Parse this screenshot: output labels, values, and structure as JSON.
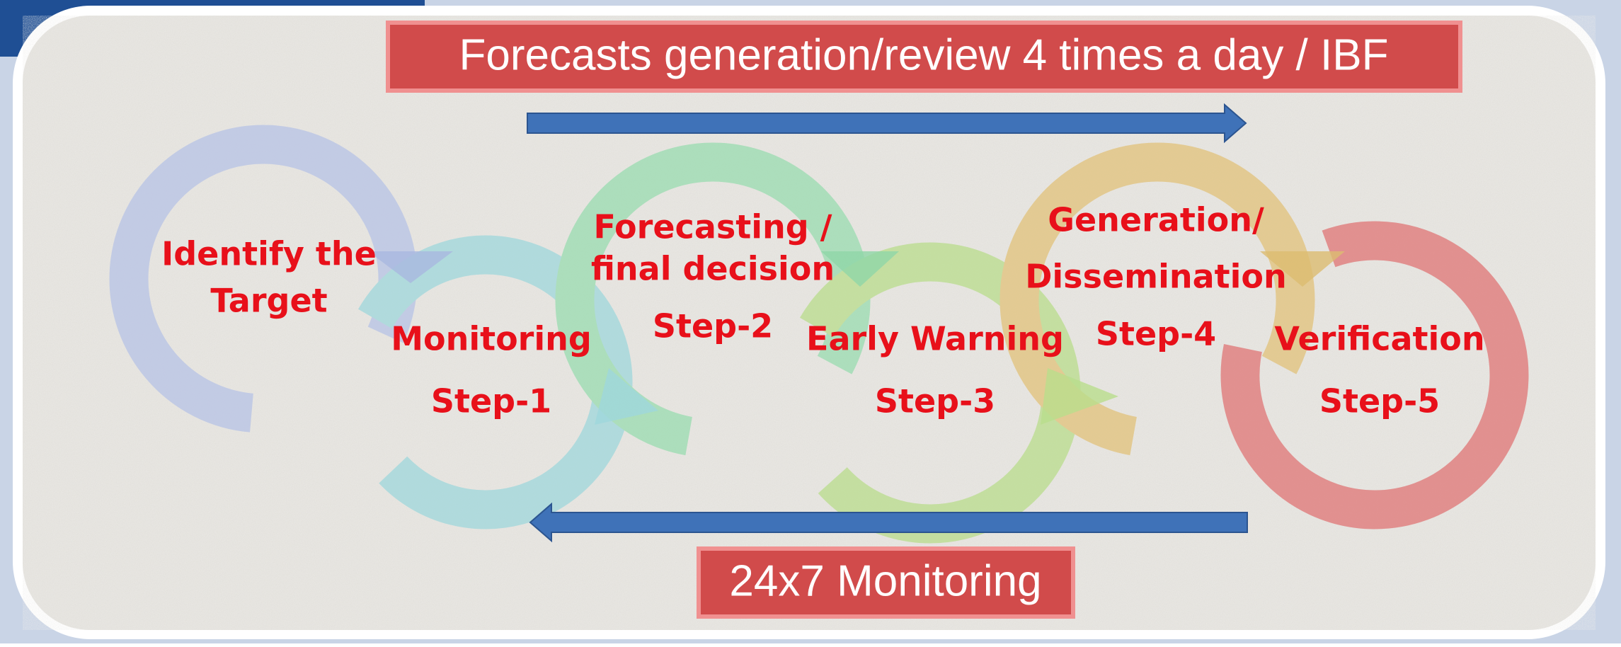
{
  "banners": {
    "top": "Forecasts generation/review 4 times a day / IBF",
    "bottom": "24x7 Monitoring"
  },
  "steps": [
    {
      "lines": [
        "Identify the",
        "Target"
      ]
    },
    {
      "lines": [
        "Monitoring",
        "Step-1"
      ]
    },
    {
      "lines": [
        "Forecasting /",
        "final decision",
        "Step-2"
      ]
    },
    {
      "lines": [
        "Early Warning",
        "Step-3"
      ]
    },
    {
      "lines": [
        "Generation/",
        "Dissemination",
        "Step-4"
      ]
    },
    {
      "lines": [
        "Verification",
        "Step-5"
      ]
    }
  ]
}
